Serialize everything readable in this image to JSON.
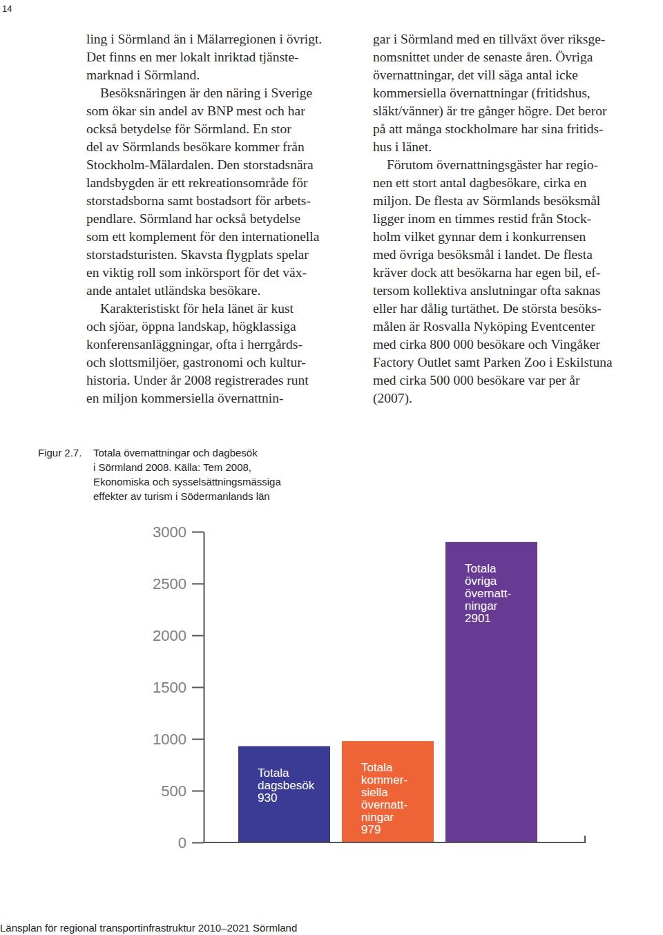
{
  "page_number": "14",
  "left_column": [
    {
      "lines": [
        "ling i Sörmland än i Mälarregionen i övrigt.",
        "Det finns en mer lokalt inriktad tjänste-",
        "marknad i Sörmland."
      ]
    },
    {
      "lines": [
        "Besöksnäringen är den näring i Sverige",
        "som ökar sin andel av BNP mest och har",
        "också betydelse för Sörmland. En stor",
        "del av Sörmlands besökare kommer från",
        "Stockholm-Mälardalen. Den storstadsnära",
        "landsbygden är ett rekreationsområde för",
        "storstadsborna samt bostadsort för arbets-",
        "pendlare. Sörmland har också betydelse",
        "som ett komplement för den internationella",
        "storstadsturisten. Skavsta flygplats spelar",
        "en viktig roll som inkörsport för det väx-",
        "ande antalet utländska besökare."
      ]
    },
    {
      "lines": [
        "Karakteristiskt för hela länet är kust",
        "och sjöar, öppna landskap, högklassiga",
        "konferensanläggningar, ofta i herrgårds-",
        "och slottsmiljöer, gastronomi och kultur-",
        "historia. Under år 2008 registrerades runt",
        "en miljon kommersiella övernattnin-"
      ]
    }
  ],
  "right_column": [
    {
      "lines": [
        "gar i Sörmland med en tillväxt över riksge-",
        "nomsnittet under de senaste åren. Övriga",
        "övernattningar, det vill säga antal icke",
        "kommersiella övernattningar (fritidshus,",
        "släkt/vänner) är tre gånger högre. Det beror",
        "på att många stockholmare har sina fritids-",
        "hus i länet."
      ]
    },
    {
      "lines": [
        "Förutom övernattningsgäster har regio-",
        "nen ett stort antal dagbesökare, cirka en",
        "miljon. De flesta av Sörmlands besöksmål",
        "ligger inom en timmes restid från Stock-",
        "holm vilket gynnar dem i konkurrensen",
        "med övriga besöksmål i landet. De flesta",
        "kräver dock att besökarna har egen bil, ef-",
        "tersom kollektiva anslutningar ofta saknas",
        "eller har dålig turtäthet. De största besöks-",
        "målen är Rosvalla Nyköping Eventcenter",
        "med cirka 800 000 besökare och Vingåker",
        "Factory Outlet samt Parken Zoo i Eskilstuna",
        "med cirka 500 000 besökare var per år",
        "(2007)."
      ]
    }
  ],
  "figure": {
    "label": "Figur 2.7.",
    "caption_lines": [
      "Totala övernattningar och dagbesök",
      "i Sörmland 2008. Källa: Tem 2008,",
      "Ekonomiska och sysselsättningsmässiga",
      "effekter av turism i Södermanlands län"
    ]
  },
  "chart_data": {
    "type": "bar",
    "categories": [
      "Totala\ndagsbesök",
      "Totala\nkommer-\nsiella\növernatt-\nningar",
      "Totala\növriga\növernatt-\nningar"
    ],
    "values": [
      930,
      979,
      2901
    ],
    "colors": [
      "#3a3b95",
      "#ef6436",
      "#673b93"
    ],
    "ylim": [
      0,
      3000
    ],
    "yticks": [
      0,
      500,
      1000,
      1500,
      2000,
      2500,
      3000
    ],
    "data_labels": true,
    "tick_labels": "y"
  },
  "footer": "Länsplan för regional transportinfrastruktur 2010–2021 Sörmland"
}
